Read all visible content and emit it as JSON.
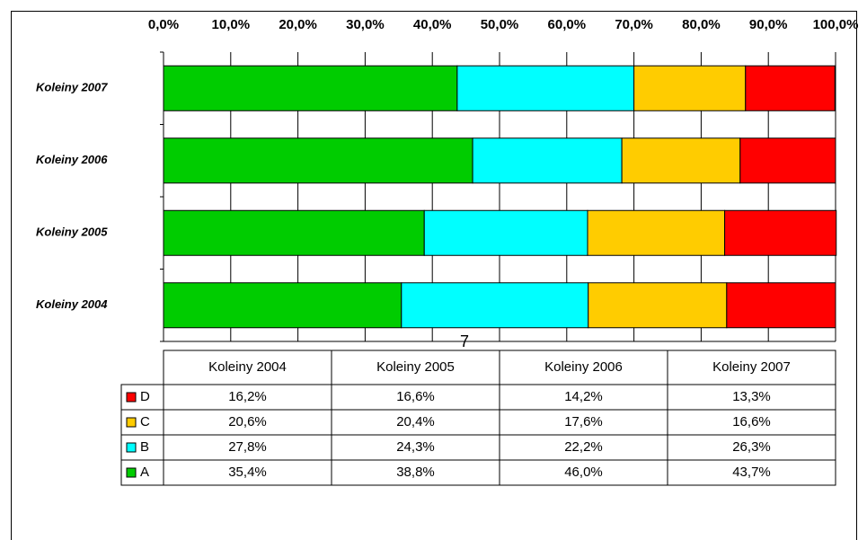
{
  "chart_data": {
    "type": "stacked_bar_horizontal",
    "categories": [
      "Koleiny 2004",
      "Koleiny 2005",
      "Koleiny 2006",
      "Koleiny 2007"
    ],
    "series": [
      {
        "name": "A",
        "color": "#00cc00",
        "values": [
          35.4,
          38.8,
          46.0,
          43.7
        ],
        "value_labels": [
          "35,4%",
          "38,8%",
          "46,0%",
          "43,7%"
        ]
      },
      {
        "name": "B",
        "color": "#00ffff",
        "values": [
          27.8,
          24.3,
          22.2,
          26.3
        ],
        "value_labels": [
          "27,8%",
          "24,3%",
          "22,2%",
          "26,3%"
        ]
      },
      {
        "name": "C",
        "color": "#ffcc00",
        "values": [
          20.6,
          20.4,
          17.6,
          16.6
        ],
        "value_labels": [
          "20,6%",
          "20,4%",
          "17,6%",
          "16,6%"
        ]
      },
      {
        "name": "D",
        "color": "#ff0000",
        "values": [
          16.2,
          16.6,
          14.2,
          13.3
        ],
        "value_labels": [
          "16,2%",
          "16,6%",
          "14,2%",
          "13,3%"
        ]
      }
    ],
    "xlim": [
      0,
      100
    ],
    "xticks": [
      {
        "value": 0,
        "label": "0,0%"
      },
      {
        "value": 10,
        "label": "10,0%"
      },
      {
        "value": 20,
        "label": "20,0%"
      },
      {
        "value": 30,
        "label": "30,0%"
      },
      {
        "value": 40,
        "label": "40,0%"
      },
      {
        "value": 50,
        "label": "50,0%"
      },
      {
        "value": 60,
        "label": "60,0%"
      },
      {
        "value": 70,
        "label": "70,0%"
      },
      {
        "value": 80,
        "label": "80,0%"
      },
      {
        "value": 90,
        "label": "90,0%"
      },
      {
        "value": 100,
        "label": "100,0%"
      }
    ],
    "grid": true,
    "annotation": "7"
  }
}
